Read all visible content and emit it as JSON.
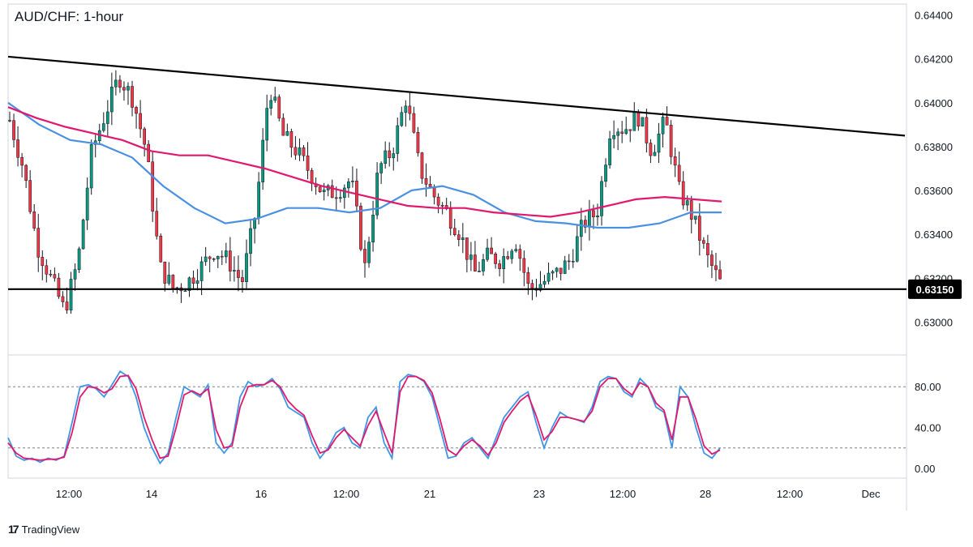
{
  "header": {
    "title": "AUD/CHF: 1-hour"
  },
  "branding": {
    "logo_icon": "tradingview-logo-icon",
    "name": "TradingView"
  },
  "colors": {
    "up": "#089981",
    "down": "#f23645",
    "wick": "#131722",
    "sma_blue": "#4a90e2",
    "sma_pink": "#e0196f",
    "stoch_k": "#3f95e6",
    "stoch_d": "#e0196f",
    "trendline": "#000000",
    "current_badge": "#000000"
  },
  "chart_data": [
    {
      "type": "candlestick",
      "symbol": "AUD/CHF",
      "timeframe": "1-hour",
      "ylim": [
        0.6285,
        0.6445
      ],
      "y_ticks": [
        "0.64400",
        "0.64200",
        "0.64000",
        "0.63800",
        "0.63600",
        "0.63400",
        "0.63200",
        "0.63000"
      ],
      "x_ticks": [
        "12:00",
        "14",
        "16",
        "12:00",
        "21",
        "23",
        "12:00",
        "28",
        "12:00",
        "Dec"
      ],
      "current_price_label": "0.63150",
      "horizontal_support": 0.6315,
      "descending_trendline": {
        "start": 0.6421,
        "end": 0.6385
      },
      "close_path": [
        0.6392,
        0.637,
        0.6335,
        0.632,
        0.6305,
        0.6328,
        0.6378,
        0.6395,
        0.6412,
        0.6402,
        0.6378,
        0.6325,
        0.6315,
        0.6318,
        0.6325,
        0.6333,
        0.6328,
        0.6318,
        0.635,
        0.6408,
        0.6385,
        0.6378,
        0.6368,
        0.6358,
        0.636,
        0.6365,
        0.6325,
        0.637,
        0.6378,
        0.6402,
        0.637,
        0.6358,
        0.635,
        0.634,
        0.6322,
        0.633,
        0.6328,
        0.6338,
        0.6315,
        0.6318,
        0.6322,
        0.6328,
        0.6345,
        0.635,
        0.639,
        0.6388,
        0.6394,
        0.6378,
        0.6392,
        0.636,
        0.6348,
        0.633,
        0.6318
      ],
      "sma_blue": [
        0.64,
        0.639,
        0.6383,
        0.6381,
        0.6375,
        0.6362,
        0.6352,
        0.6345,
        0.6347,
        0.6352,
        0.6352,
        0.635,
        0.6352,
        0.636,
        0.6362,
        0.6358,
        0.635,
        0.6346,
        0.6345,
        0.6343,
        0.6343,
        0.6345,
        0.635,
        0.635
      ],
      "sma_pink": [
        0.6398,
        0.6393,
        0.6389,
        0.6386,
        0.6383,
        0.6378,
        0.6376,
        0.6376,
        0.6373,
        0.637,
        0.6366,
        0.6362,
        0.6359,
        0.6356,
        0.6353,
        0.6352,
        0.6352,
        0.635,
        0.6349,
        0.6348,
        0.635,
        0.6353,
        0.6356,
        0.6357,
        0.6356,
        0.6355
      ]
    },
    {
      "type": "line",
      "indicator": "stochastic",
      "ylim": [
        0,
        100
      ],
      "y_ticks": [
        "80.00",
        "40.00",
        "0.00"
      ],
      "levels": [
        80,
        20
      ],
      "stoch_k": [
        30,
        12,
        8,
        10,
        6,
        10,
        8,
        12,
        45,
        80,
        82,
        78,
        70,
        82,
        95,
        90,
        70,
        40,
        20,
        5,
        15,
        50,
        80,
        75,
        70,
        82,
        25,
        15,
        25,
        70,
        85,
        80,
        82,
        88,
        78,
        60,
        55,
        50,
        25,
        10,
        20,
        35,
        40,
        25,
        20,
        50,
        60,
        25,
        10,
        85,
        92,
        90,
        85,
        70,
        40,
        10,
        12,
        25,
        30,
        20,
        10,
        30,
        50,
        60,
        70,
        75,
        45,
        20,
        40,
        55,
        50,
        48,
        45,
        60,
        85,
        90,
        88,
        75,
        70,
        88,
        80,
        60,
        55,
        20,
        80,
        70,
        40,
        15,
        10,
        20
      ],
      "stoch_d": [
        25,
        15,
        10,
        9,
        8,
        9,
        9,
        11,
        35,
        70,
        80,
        79,
        74,
        78,
        90,
        91,
        78,
        50,
        28,
        10,
        12,
        40,
        72,
        76,
        72,
        78,
        38,
        20,
        22,
        60,
        80,
        82,
        82,
        86,
        80,
        66,
        58,
        52,
        32,
        15,
        18,
        30,
        38,
        30,
        22,
        42,
        56,
        35,
        15,
        75,
        90,
        90,
        86,
        74,
        48,
        18,
        13,
        22,
        28,
        22,
        13,
        25,
        45,
        56,
        66,
        72,
        52,
        28,
        36,
        50,
        50,
        48,
        46,
        56,
        80,
        88,
        88,
        78,
        72,
        84,
        80,
        64,
        57,
        28,
        70,
        70,
        48,
        22,
        14,
        18
      ]
    }
  ]
}
